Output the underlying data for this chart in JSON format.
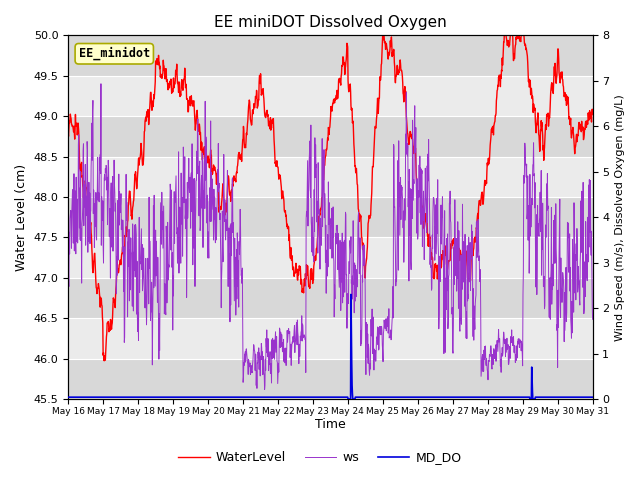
{
  "title": "EE miniDOT Dissolved Oxygen",
  "xlabel": "Time",
  "ylabel_left": "Water Level (cm)",
  "ylabel_right": "Wind Speed (m/s), Dissolved Oxygen (mg/L)",
  "annotation": "EE_minidot",
  "x_tick_labels": [
    "May 16",
    "May 17",
    "May 18",
    "May 19",
    "May 20",
    "May 21",
    "May 22",
    "May 23",
    "May 24",
    "May 25",
    "May 26",
    "May 27",
    "May 28",
    "May 29",
    "May 30",
    "May 31"
  ],
  "ylim_left": [
    45.5,
    50.0
  ],
  "ylim_right": [
    0.0,
    8.0
  ],
  "color_water": "#ff0000",
  "color_ws": "#9933cc",
  "color_do": "#0000dd",
  "legend_labels": [
    "WaterLevel",
    "ws",
    "MD_DO"
  ],
  "background_color": "#ffffff",
  "stripe_color_dark": "#d8d8d8",
  "stripe_color_light": "#ebebeb",
  "n_points": 1440,
  "seed": 12345
}
